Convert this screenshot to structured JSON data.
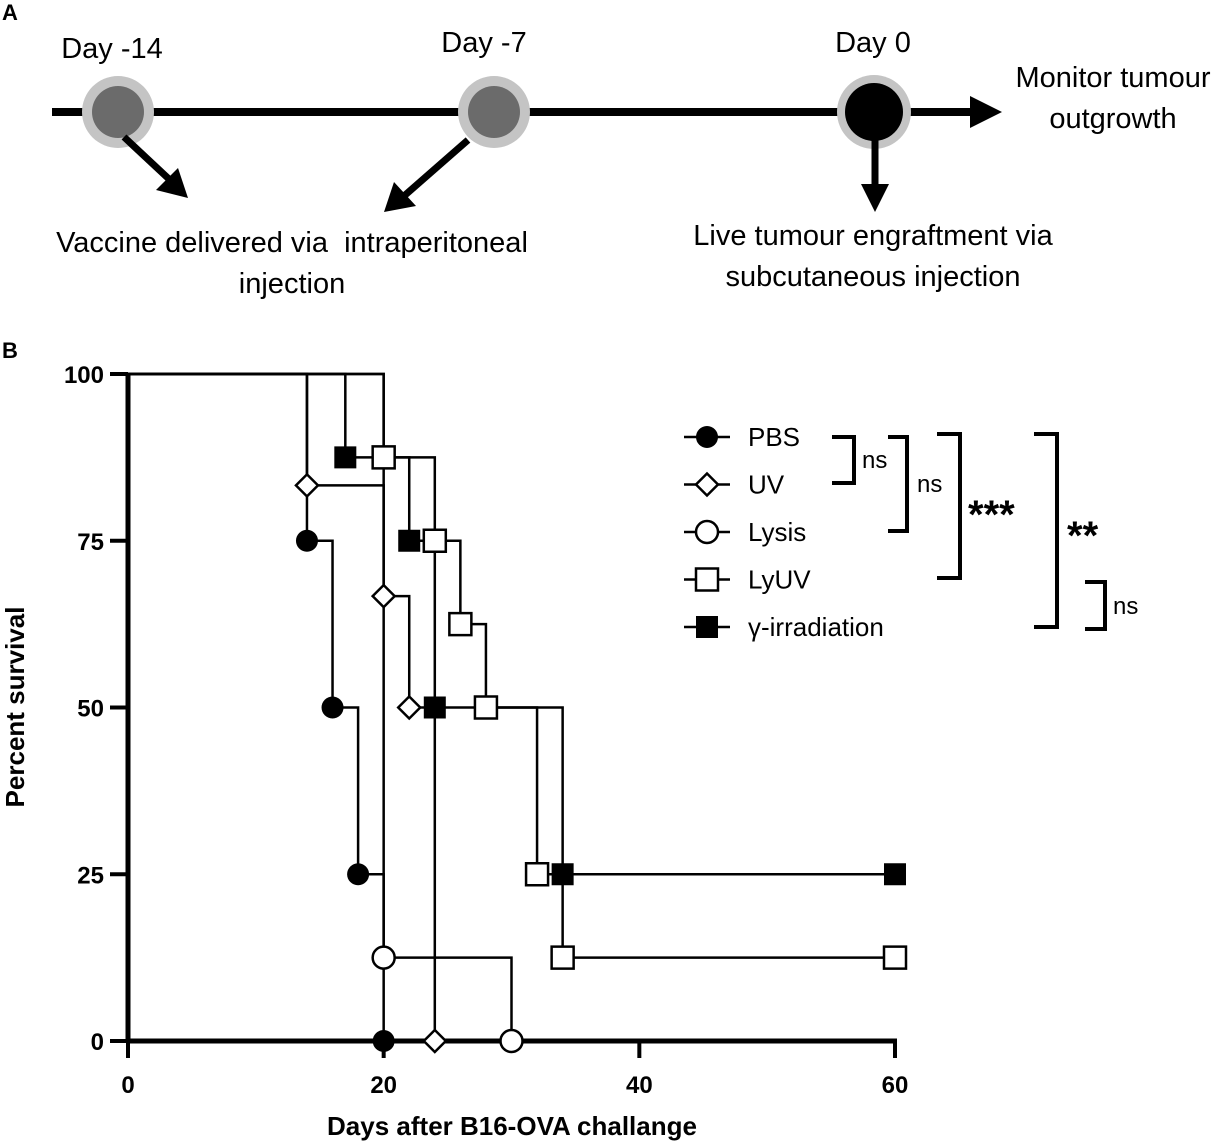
{
  "panel_a": {
    "label": "A",
    "events": [
      {
        "day_label": "Day -14"
      },
      {
        "day_label": "Day -7"
      },
      {
        "day_label": "Day 0"
      }
    ],
    "end_label_line1": "Monitor tumour",
    "end_label_line2": "outgrowth",
    "vaccine_line1": "Vaccine delivered via  intraperitoneal",
    "vaccine_line2": "injection",
    "engraft_line1": "Live tumour engraftment via",
    "engraft_line2": "subcutaneous injection",
    "colors": {
      "vaccine_dot": "#6b6b6b",
      "halo": "#c4c4c4",
      "tumour_dot": "#000000"
    }
  },
  "panel_b": {
    "label": "B",
    "significance": {
      "ns": "ns",
      "three_star": "***",
      "two_star": "**"
    }
  },
  "chart_data": {
    "type": "line",
    "step": true,
    "title": "",
    "xlabel": "Days after B16-OVA challange",
    "ylabel": "Percent survival",
    "xlim": [
      0,
      60
    ],
    "ylim": [
      0,
      100
    ],
    "xticks": [
      0,
      20,
      40,
      60
    ],
    "yticks": [
      0,
      25,
      50,
      75,
      100
    ],
    "legend_position": "top-right",
    "series": [
      {
        "name": "PBS",
        "marker": "filled-circle",
        "x": [
          0,
          14,
          16,
          18,
          20
        ],
        "y": [
          100,
          75,
          50,
          25,
          0
        ]
      },
      {
        "name": "UV",
        "marker": "open-diamond",
        "x": [
          0,
          14,
          20,
          22,
          24
        ],
        "y": [
          100,
          83.3,
          66.7,
          50,
          0
        ]
      },
      {
        "name": "Lysis",
        "marker": "open-circle",
        "x": [
          0,
          20,
          30
        ],
        "y": [
          100,
          12.5,
          0
        ]
      },
      {
        "name": "LyUV",
        "marker": "open-square",
        "x": [
          0,
          20,
          24,
          26,
          28,
          32,
          34,
          60
        ],
        "y": [
          100,
          87.5,
          75,
          62.5,
          50,
          25,
          12.5,
          12.5
        ]
      },
      {
        "name": "γ-irradiation",
        "marker": "filled-square",
        "x": [
          0,
          17,
          22,
          24,
          34,
          60
        ],
        "y": [
          100,
          87.5,
          75,
          50,
          25,
          25
        ]
      }
    ]
  }
}
